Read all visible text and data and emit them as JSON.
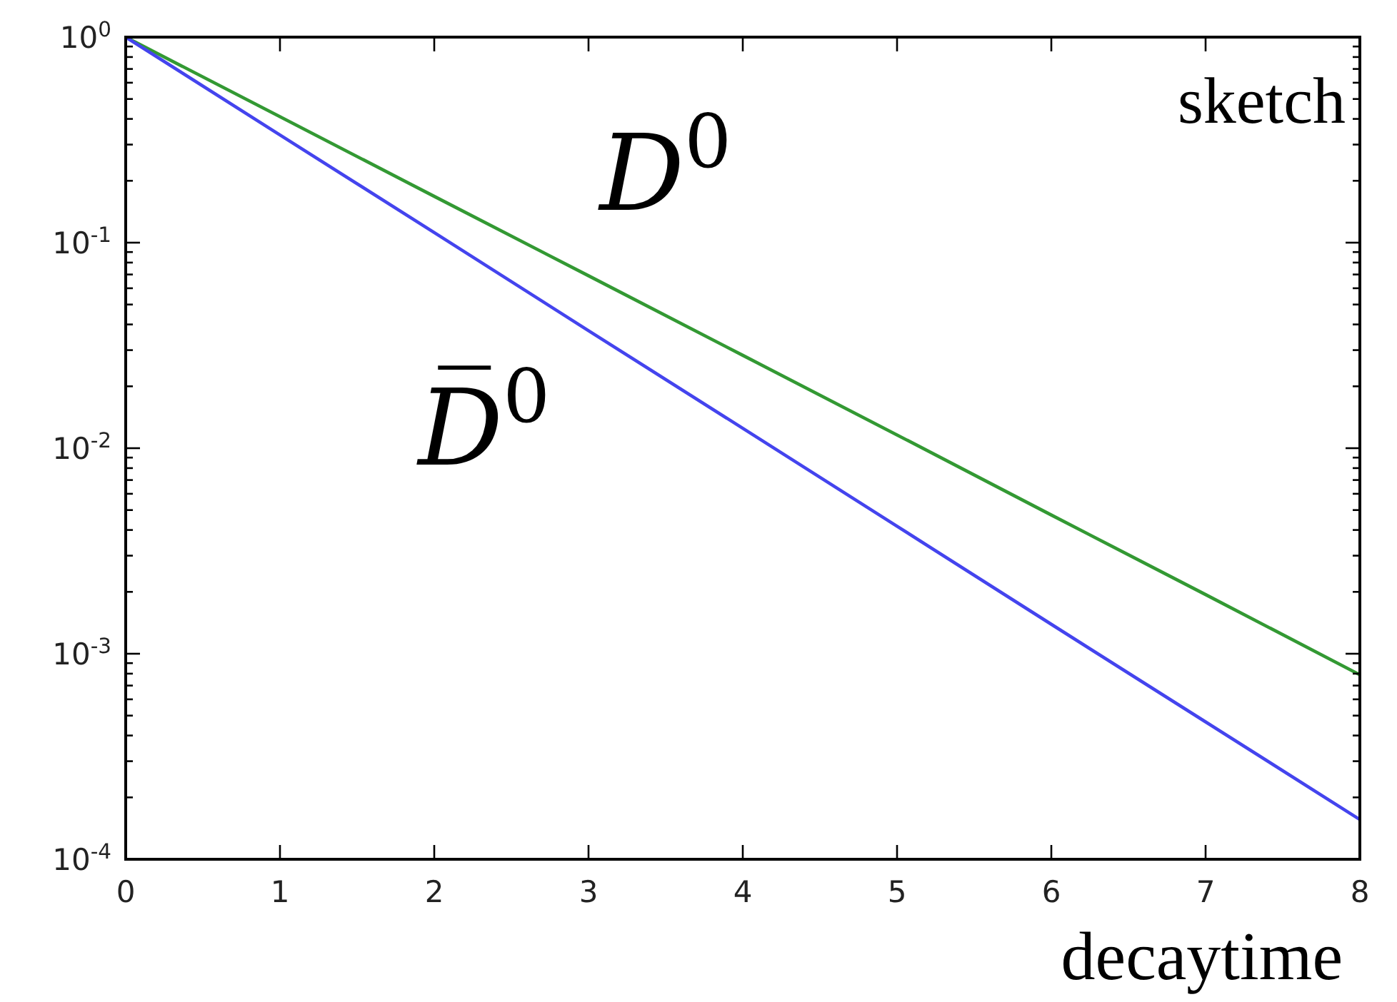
{
  "chart_data": {
    "type": "line",
    "xlabel": "decaytime",
    "annotations": [
      "sketch"
    ],
    "log": "y",
    "x": [
      0,
      1,
      2,
      3,
      4,
      5,
      6,
      7,
      8
    ],
    "series": [
      {
        "name": "D$^{0}$",
        "color": "#339933",
        "values": [
          1,
          0.41,
          0.168,
          0.069,
          0.0283,
          0.0116,
          0.00473,
          0.00194,
          0.00079
        ]
      },
      {
        "name": "D̅$^{0}$",
        "color": "#4444ee",
        "values": [
          1,
          0.334,
          0.112,
          0.0373,
          0.0125,
          0.00417,
          0.00139,
          0.000466,
          0.000156
        ]
      }
    ],
    "xlim": [
      0,
      8
    ],
    "xticks": [
      0,
      1,
      2,
      3,
      4,
      5,
      6,
      7,
      8
    ],
    "ylim": [
      0.0001,
      1
    ],
    "yticks": [
      {
        "value": 0.0001,
        "label": "10$^{-4}$"
      },
      {
        "value": 0.0002,
        "label": null
      },
      {
        "value": 0.0003,
        "label": null
      },
      {
        "value": 0.0004,
        "label": null
      },
      {
        "value": 0.0005,
        "label": null
      },
      {
        "value": 0.0006,
        "label": null
      },
      {
        "value": 0.0007,
        "label": null
      },
      {
        "value": 0.0008,
        "label": null
      },
      {
        "value": 0.0009,
        "label": null
      },
      {
        "value": 0.001,
        "label": "10$^{-3}$"
      },
      {
        "value": 0.002,
        "label": null
      },
      {
        "value": 0.003,
        "label": null
      },
      {
        "value": 0.004,
        "label": null
      },
      {
        "value": 0.005,
        "label": null
      },
      {
        "value": 0.006,
        "label": null
      },
      {
        "value": 0.007,
        "label": null
      },
      {
        "value": 0.008,
        "label": null
      },
      {
        "value": 0.009,
        "label": null
      },
      {
        "value": 0.01,
        "label": "10$^{-2}$"
      },
      {
        "value": 0.02,
        "label": null
      },
      {
        "value": 0.03,
        "label": null
      },
      {
        "value": 0.04,
        "label": null
      },
      {
        "value": 0.05,
        "label": null
      },
      {
        "value": 0.06,
        "label": null
      },
      {
        "value": 0.07,
        "label": null
      },
      {
        "value": 0.08,
        "label": null
      },
      {
        "value": 0.09,
        "label": null
      },
      {
        "value": 0.1,
        "label": "10$^{-1}$"
      },
      {
        "value": 0.2,
        "label": null
      },
      {
        "value": 0.3,
        "label": null
      },
      {
        "value": 0.4,
        "label": null
      },
      {
        "value": 0.5,
        "label": null
      },
      {
        "value": 0.6,
        "label": null
      },
      {
        "value": 0.7,
        "label": null
      },
      {
        "value": 0.8,
        "label": null
      },
      {
        "value": 0.9,
        "label": null
      },
      {
        "value": 1,
        "label": "10$^{0}$"
      }
    ]
  }
}
